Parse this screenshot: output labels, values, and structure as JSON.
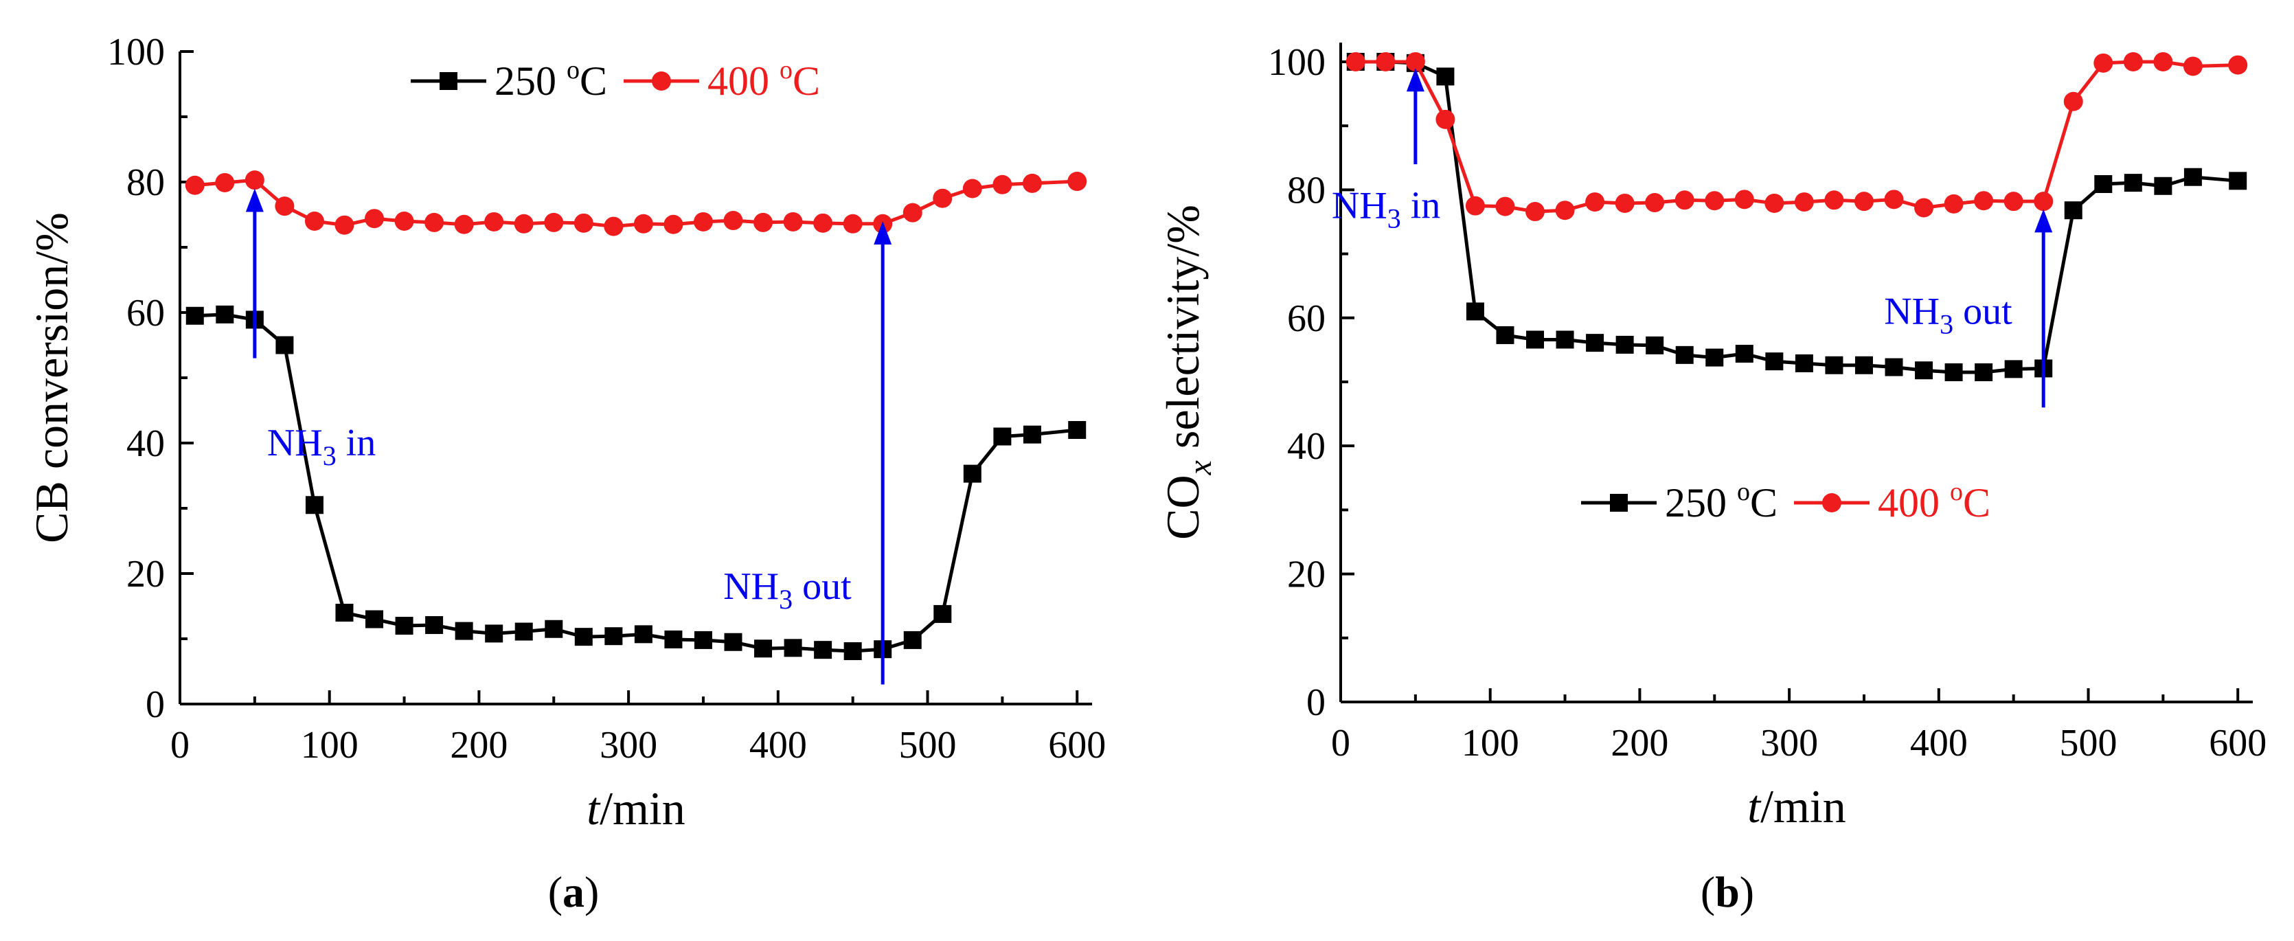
{
  "figure": {
    "panels": [
      {
        "label_open": "(",
        "label_letter": "a",
        "label_close": ")"
      },
      {
        "label_open": "(",
        "label_letter": "b",
        "label_close": ")"
      }
    ]
  },
  "chart_data": [
    {
      "type": "line",
      "title": "",
      "xlabel_italic": "t",
      "xlabel_rest": "/min",
      "ylabel": "CB conversion/%",
      "xlim": [
        0,
        610
      ],
      "ylim": [
        0,
        100
      ],
      "xticks": [
        0,
        100,
        200,
        300,
        400,
        500,
        600
      ],
      "yticks": [
        0,
        20,
        40,
        60,
        80,
        100
      ],
      "legend_position": "top-center",
      "series": [
        {
          "name": "250 °C",
          "name_num": "250 ",
          "name_deg": "o",
          "name_unit": "C",
          "color": "#000000",
          "marker": "square",
          "x": [
            10,
            30,
            50,
            70,
            90,
            110,
            130,
            150,
            170,
            190,
            210,
            230,
            250,
            270,
            290,
            310,
            330,
            350,
            370,
            390,
            410,
            430,
            450,
            470,
            490,
            510,
            530,
            550,
            570,
            600
          ],
          "values": [
            59.5,
            59.7,
            58.9,
            55,
            30.5,
            14,
            13,
            12,
            12.1,
            11.2,
            10.8,
            11.1,
            11.5,
            10.3,
            10.4,
            10.7,
            9.9,
            9.8,
            9.5,
            8.5,
            8.6,
            8.3,
            8.1,
            8.4,
            9.8,
            13.8,
            35.3,
            41,
            41.3,
            42
          ]
        },
        {
          "name": "400 °C",
          "name_num": "400 ",
          "name_deg": "o",
          "name_unit": "C",
          "color": "#ee1c1c",
          "marker": "circle",
          "x": [
            10,
            30,
            50,
            70,
            90,
            110,
            130,
            150,
            170,
            190,
            210,
            230,
            250,
            270,
            290,
            310,
            330,
            350,
            370,
            390,
            410,
            430,
            450,
            470,
            490,
            510,
            530,
            550,
            570,
            600
          ],
          "values": [
            79.5,
            79.9,
            80.3,
            76.3,
            74,
            73.4,
            74.4,
            74,
            73.8,
            73.5,
            73.9,
            73.6,
            73.8,
            73.7,
            73.2,
            73.6,
            73.5,
            73.9,
            74.1,
            73.8,
            73.9,
            73.7,
            73.6,
            73.6,
            75.3,
            77.5,
            79,
            79.6,
            79.8,
            80.1
          ]
        }
      ],
      "annotations": [
        {
          "text_main": "NH",
          "text_sub": "3",
          "text_rest": " in",
          "x": 50,
          "y_tail": 53,
          "y_head": 79
        },
        {
          "text_main": "NH",
          "text_sub": "3",
          "text_rest": " out",
          "x": 470,
          "y_tail": 3,
          "y_head": 74
        }
      ]
    },
    {
      "type": "line",
      "title": "",
      "xlabel_italic": "t",
      "xlabel_rest": "/min",
      "ylabel_main": "CO",
      "ylabel_sub": "x",
      "ylabel_rest": " selectivity/%",
      "xlim": [
        0,
        610
      ],
      "ylim": [
        0,
        103
      ],
      "xticks": [
        0,
        100,
        200,
        300,
        400,
        500,
        600
      ],
      "yticks": [
        0,
        20,
        40,
        60,
        80,
        100
      ],
      "legend_position": "center-right",
      "series": [
        {
          "name": "250 °C",
          "name_num": "250 ",
          "name_deg": "o",
          "name_unit": "C",
          "color": "#000000",
          "marker": "square",
          "x": [
            10,
            30,
            50,
            70,
            90,
            110,
            130,
            150,
            170,
            190,
            210,
            230,
            250,
            270,
            290,
            310,
            330,
            350,
            370,
            390,
            410,
            430,
            450,
            470,
            490,
            510,
            530,
            550,
            570,
            600
          ],
          "values": [
            100,
            100,
            99.8,
            97.7,
            61,
            57.3,
            56.6,
            56.6,
            56.1,
            55.8,
            55.7,
            54.2,
            53.8,
            54.4,
            53.2,
            52.9,
            52.6,
            52.6,
            52.3,
            51.8,
            51.5,
            51.5,
            52,
            52.1,
            76.8,
            80.9,
            81.1,
            80.6,
            82,
            81.4
          ]
        },
        {
          "name": "400 °C",
          "name_num": "400 ",
          "name_deg": "o",
          "name_unit": "C",
          "color": "#ee1c1c",
          "marker": "circle",
          "x": [
            10,
            30,
            50,
            70,
            90,
            110,
            130,
            150,
            170,
            190,
            210,
            230,
            250,
            270,
            290,
            310,
            330,
            350,
            370,
            390,
            410,
            430,
            450,
            470,
            490,
            510,
            530,
            550,
            570,
            600
          ],
          "values": [
            100,
            100,
            100,
            91,
            77.5,
            77.4,
            76.6,
            76.8,
            78.1,
            77.9,
            78,
            78.4,
            78.3,
            78.5,
            77.9,
            78.1,
            78.4,
            78.2,
            78.5,
            77.2,
            77.8,
            78.3,
            78.2,
            78.2,
            93.8,
            99.8,
            100,
            100,
            99.3,
            99.5
          ]
        }
      ],
      "annotations": [
        {
          "text_main": "NH",
          "text_sub": "3",
          "text_rest": " in",
          "x": 50,
          "y_tail": 84,
          "y_head": 99
        },
        {
          "text_main": "NH",
          "text_sub": "3",
          "text_rest": " out",
          "x": 470,
          "y_tail": 46,
          "y_head": 77
        }
      ]
    }
  ]
}
